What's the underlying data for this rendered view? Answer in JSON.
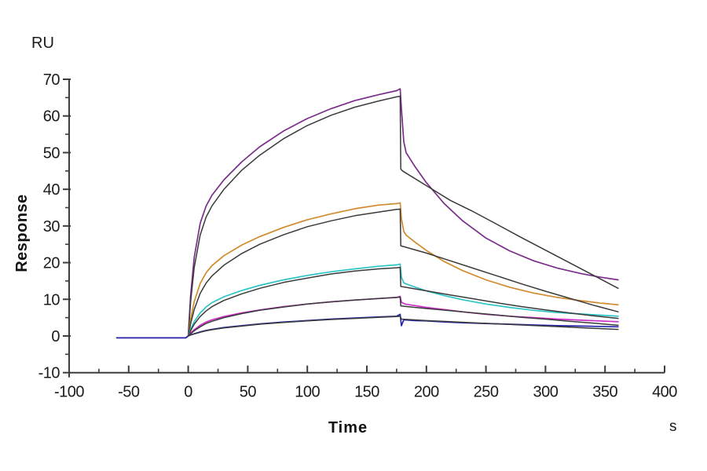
{
  "chart_data": {
    "type": "line",
    "title": "",
    "x_label": "Time",
    "x_unit": "s",
    "y_label": "Response",
    "y_unit": "RU",
    "x_range": [
      -100,
      400
    ],
    "y_range": [
      -10,
      70
    ],
    "x_ticks": [
      -100,
      -50,
      0,
      50,
      100,
      150,
      200,
      250,
      300,
      350,
      400
    ],
    "x_minor_ticks": [
      -75,
      -25,
      25,
      75,
      125,
      175,
      225,
      275,
      325,
      375
    ],
    "y_ticks": [
      -10,
      0,
      10,
      20,
      30,
      40,
      50,
      60,
      70
    ],
    "y_minor_ticks": [
      -5,
      5,
      15,
      25,
      35,
      45,
      55,
      65
    ],
    "grid": false,
    "legend": "none",
    "axis_color": "#3c3c3c",
    "baseline_start_s": -60,
    "association_start_s": 0,
    "dissociation_start_s": 178,
    "trace_end_s": 361,
    "series": [
      {
        "name": "curve1-data",
        "role": "data",
        "color": "#7b2d8b",
        "stroke_width": 1.7,
        "peak_ru": 67.4,
        "end_ru": 15.3,
        "points": [
          [
            -60,
            -0.5
          ],
          [
            -30,
            -0.5
          ],
          [
            -2,
            -0.5
          ],
          [
            0,
            0
          ],
          [
            2,
            10.9
          ],
          [
            5,
            21.4
          ],
          [
            10,
            30.7
          ],
          [
            15,
            35.4
          ],
          [
            20,
            38.4
          ],
          [
            30,
            42.6
          ],
          [
            45,
            47.5
          ],
          [
            60,
            51.6
          ],
          [
            80,
            55.9
          ],
          [
            100,
            59.3
          ],
          [
            120,
            62.0
          ],
          [
            140,
            64.2
          ],
          [
            160,
            65.8
          ],
          [
            175,
            66.9
          ],
          [
            178,
            67.4
          ],
          [
            179,
            62
          ],
          [
            181,
            53
          ],
          [
            183,
            50
          ],
          [
            190,
            46.4
          ],
          [
            200,
            41.8
          ],
          [
            215,
            36.1
          ],
          [
            230,
            31.5
          ],
          [
            250,
            26.7
          ],
          [
            270,
            23.2
          ],
          [
            290,
            20.5
          ],
          [
            310,
            18.5
          ],
          [
            330,
            17.0
          ],
          [
            345,
            16.1
          ],
          [
            361,
            15.3
          ]
        ]
      },
      {
        "name": "curve1-fit",
        "role": "fit",
        "color": "#3a3a3a",
        "stroke_width": 1.5,
        "peak_ru": 65.4,
        "end_ru": 13.0,
        "points": [
          [
            0,
            0
          ],
          [
            2,
            9.2
          ],
          [
            5,
            18.6
          ],
          [
            10,
            27.5
          ],
          [
            15,
            32.4
          ],
          [
            20,
            35.5
          ],
          [
            30,
            40.0
          ],
          [
            45,
            45.2
          ],
          [
            60,
            49.3
          ],
          [
            80,
            53.8
          ],
          [
            100,
            57.4
          ],
          [
            120,
            60.2
          ],
          [
            140,
            62.4
          ],
          [
            160,
            64.1
          ],
          [
            175,
            65.2
          ],
          [
            178,
            65.4
          ],
          [
            178.5,
            45.5
          ],
          [
            180,
            45
          ],
          [
            200,
            41
          ],
          [
            220,
            37
          ],
          [
            240,
            33.8
          ],
          [
            260,
            30.3
          ],
          [
            280,
            26.8
          ],
          [
            300,
            23.4
          ],
          [
            320,
            20
          ],
          [
            340,
            16.6
          ],
          [
            361,
            13
          ]
        ]
      },
      {
        "name": "curve2-data",
        "role": "data",
        "color": "#d28a2e",
        "stroke_width": 1.7,
        "peak_ru": 36.3,
        "end_ru": 8.5,
        "points": [
          [
            -60,
            -0.5
          ],
          [
            -2,
            -0.5
          ],
          [
            0,
            0
          ],
          [
            2,
            4.4
          ],
          [
            5,
            9.3
          ],
          [
            10,
            14.3
          ],
          [
            15,
            17.2
          ],
          [
            20,
            19.2
          ],
          [
            30,
            21.9
          ],
          [
            45,
            24.8
          ],
          [
            60,
            27.1
          ],
          [
            80,
            29.6
          ],
          [
            100,
            31.7
          ],
          [
            120,
            33.3
          ],
          [
            140,
            34.7
          ],
          [
            160,
            35.7
          ],
          [
            175,
            36.1
          ],
          [
            178,
            36.3
          ],
          [
            179,
            32
          ],
          [
            181,
            28.5
          ],
          [
            183,
            27.5
          ],
          [
            190,
            25.7
          ],
          [
            200,
            23.3
          ],
          [
            215,
            20.3
          ],
          [
            230,
            17.9
          ],
          [
            250,
            15.3
          ],
          [
            270,
            13.3
          ],
          [
            290,
            11.7
          ],
          [
            310,
            10.5
          ],
          [
            330,
            9.6
          ],
          [
            345,
            9.0
          ],
          [
            361,
            8.5
          ]
        ]
      },
      {
        "name": "curve2-fit",
        "role": "fit",
        "color": "#3a3a3a",
        "stroke_width": 1.5,
        "peak_ru": 34.6,
        "end_ru": 6.6,
        "points": [
          [
            0,
            0
          ],
          [
            2,
            3.3
          ],
          [
            5,
            7.2
          ],
          [
            10,
            11.6
          ],
          [
            15,
            14.4
          ],
          [
            20,
            16.4
          ],
          [
            30,
            19.3
          ],
          [
            45,
            22.5
          ],
          [
            60,
            25.0
          ],
          [
            80,
            27.6
          ],
          [
            100,
            29.8
          ],
          [
            120,
            31.4
          ],
          [
            140,
            32.8
          ],
          [
            160,
            33.8
          ],
          [
            175,
            34.5
          ],
          [
            178,
            34.6
          ],
          [
            178.5,
            24.6
          ],
          [
            200,
            22.6
          ],
          [
            220,
            20.5
          ],
          [
            240,
            18.4
          ],
          [
            260,
            16.3
          ],
          [
            280,
            14.2
          ],
          [
            300,
            12.2
          ],
          [
            320,
            10.3
          ],
          [
            340,
            8.4
          ],
          [
            361,
            6.6
          ]
        ]
      },
      {
        "name": "curve3-data",
        "role": "data",
        "color": "#2ec4c6",
        "stroke_width": 1.7,
        "peak_ru": 19.6,
        "end_ru": 5.4,
        "points": [
          [
            -60,
            -0.5
          ],
          [
            -2,
            -0.5
          ],
          [
            0,
            0
          ],
          [
            2,
            1.8
          ],
          [
            5,
            3.9
          ],
          [
            10,
            6.3
          ],
          [
            15,
            7.9
          ],
          [
            20,
            9.1
          ],
          [
            30,
            10.7
          ],
          [
            45,
            12.4
          ],
          [
            60,
            13.8
          ],
          [
            80,
            15.3
          ],
          [
            100,
            16.5
          ],
          [
            120,
            17.5
          ],
          [
            140,
            18.3
          ],
          [
            160,
            19.0
          ],
          [
            175,
            19.4
          ],
          [
            178,
            19.6
          ],
          [
            179,
            16
          ],
          [
            181,
            14.5
          ],
          [
            183,
            14.2
          ],
          [
            190,
            13.4
          ],
          [
            200,
            12.3
          ],
          [
            215,
            11.0
          ],
          [
            230,
            9.9
          ],
          [
            250,
            8.7
          ],
          [
            270,
            7.8
          ],
          [
            290,
            7.0
          ],
          [
            310,
            6.4
          ],
          [
            330,
            6.0
          ],
          [
            345,
            5.7
          ],
          [
            361,
            5.4
          ]
        ]
      },
      {
        "name": "curve3-fit",
        "role": "fit",
        "color": "#3a3a3a",
        "stroke_width": 1.5,
        "peak_ru": 18.7,
        "end_ru": 4.8,
        "points": [
          [
            0,
            0
          ],
          [
            2,
            1.4
          ],
          [
            5,
            3.2
          ],
          [
            10,
            5.3
          ],
          [
            15,
            6.8
          ],
          [
            20,
            8.0
          ],
          [
            30,
            9.7
          ],
          [
            45,
            11.5
          ],
          [
            60,
            13.0
          ],
          [
            80,
            14.6
          ],
          [
            100,
            15.8
          ],
          [
            120,
            16.9
          ],
          [
            140,
            17.7
          ],
          [
            160,
            18.3
          ],
          [
            175,
            18.6
          ],
          [
            178,
            18.7
          ],
          [
            178.5,
            13.5
          ],
          [
            200,
            12.3
          ],
          [
            220,
            11.2
          ],
          [
            240,
            10.1
          ],
          [
            260,
            9.0
          ],
          [
            280,
            8.0
          ],
          [
            300,
            7.1
          ],
          [
            320,
            6.3
          ],
          [
            340,
            5.5
          ],
          [
            361,
            4.8
          ]
        ]
      },
      {
        "name": "curve4-data",
        "role": "data",
        "color": "#cb2ecb",
        "stroke_width": 1.7,
        "peak_ru": 10.8,
        "end_ru": 3.9,
        "points": [
          [
            -60,
            -0.5
          ],
          [
            -2,
            -0.5
          ],
          [
            0,
            0
          ],
          [
            2,
            0.8
          ],
          [
            5,
            1.7
          ],
          [
            10,
            2.9
          ],
          [
            15,
            3.8
          ],
          [
            20,
            4.4
          ],
          [
            30,
            5.3
          ],
          [
            45,
            6.3
          ],
          [
            60,
            7.1
          ],
          [
            80,
            8.0
          ],
          [
            100,
            8.7
          ],
          [
            120,
            9.3
          ],
          [
            140,
            9.8
          ],
          [
            160,
            10.2
          ],
          [
            175,
            10.5
          ],
          [
            178,
            10.8
          ],
          [
            179,
            9.2
          ],
          [
            182,
            8.7
          ],
          [
            190,
            8.3
          ],
          [
            200,
            7.8
          ],
          [
            215,
            7.2
          ],
          [
            230,
            6.6
          ],
          [
            250,
            5.9
          ],
          [
            270,
            5.4
          ],
          [
            290,
            5.0
          ],
          [
            310,
            4.6
          ],
          [
            330,
            4.3
          ],
          [
            345,
            4.1
          ],
          [
            361,
            3.9
          ]
        ]
      },
      {
        "name": "curve4-fit",
        "role": "fit",
        "color": "#3a3a3a",
        "stroke_width": 1.5,
        "peak_ru": 10.6,
        "end_ru": 2.9,
        "points": [
          [
            0,
            0
          ],
          [
            2,
            0.6
          ],
          [
            5,
            1.4
          ],
          [
            10,
            2.5
          ],
          [
            15,
            3.4
          ],
          [
            20,
            4.0
          ],
          [
            30,
            5.0
          ],
          [
            45,
            6.1
          ],
          [
            60,
            7.0
          ],
          [
            80,
            7.9
          ],
          [
            100,
            8.7
          ],
          [
            120,
            9.3
          ],
          [
            140,
            9.8
          ],
          [
            160,
            10.2
          ],
          [
            175,
            10.5
          ],
          [
            178,
            10.6
          ],
          [
            178.5,
            8.2
          ],
          [
            200,
            7.5
          ],
          [
            220,
            6.9
          ],
          [
            240,
            6.3
          ],
          [
            260,
            5.7
          ],
          [
            280,
            5.1
          ],
          [
            300,
            4.6
          ],
          [
            320,
            4.0
          ],
          [
            340,
            3.5
          ],
          [
            361,
            2.9
          ]
        ]
      },
      {
        "name": "curve5-data",
        "role": "data",
        "color": "#2424ae",
        "stroke_width": 1.7,
        "peak_ru": 5.9,
        "end_ru": 2.5,
        "points": [
          [
            -60,
            -0.5
          ],
          [
            -2,
            -0.5
          ],
          [
            0,
            0
          ],
          [
            2,
            0.3
          ],
          [
            5,
            0.6
          ],
          [
            10,
            1.1
          ],
          [
            15,
            1.5
          ],
          [
            20,
            1.8
          ],
          [
            30,
            2.3
          ],
          [
            45,
            2.8
          ],
          [
            60,
            3.3
          ],
          [
            80,
            3.8
          ],
          [
            100,
            4.2
          ],
          [
            120,
            4.6
          ],
          [
            140,
            4.9
          ],
          [
            160,
            5.2
          ],
          [
            175,
            5.4
          ],
          [
            178,
            5.9
          ],
          [
            179,
            2.8
          ],
          [
            181,
            4.4
          ],
          [
            190,
            4.2
          ],
          [
            200,
            4.1
          ],
          [
            215,
            3.8
          ],
          [
            230,
            3.6
          ],
          [
            250,
            3.4
          ],
          [
            270,
            3.2
          ],
          [
            290,
            3.0
          ],
          [
            310,
            2.8
          ],
          [
            330,
            2.7
          ],
          [
            345,
            2.6
          ],
          [
            361,
            2.5
          ]
        ]
      },
      {
        "name": "curve5-fit",
        "role": "fit",
        "color": "#3a3a3a",
        "stroke_width": 1.5,
        "peak_ru": 5.4,
        "end_ru": 1.8,
        "points": [
          [
            0,
            0
          ],
          [
            2,
            0.25
          ],
          [
            5,
            0.55
          ],
          [
            10,
            1.0
          ],
          [
            15,
            1.4
          ],
          [
            20,
            1.7
          ],
          [
            30,
            2.2
          ],
          [
            45,
            2.7
          ],
          [
            60,
            3.2
          ],
          [
            80,
            3.7
          ],
          [
            100,
            4.1
          ],
          [
            120,
            4.5
          ],
          [
            140,
            4.8
          ],
          [
            160,
            5.1
          ],
          [
            175,
            5.3
          ],
          [
            178,
            5.4
          ],
          [
            179,
            4.6
          ],
          [
            200,
            4.2
          ],
          [
            220,
            3.9
          ],
          [
            240,
            3.6
          ],
          [
            260,
            3.3
          ],
          [
            280,
            3.0
          ],
          [
            300,
            2.7
          ],
          [
            320,
            2.4
          ],
          [
            340,
            2.1
          ],
          [
            361,
            1.8
          ]
        ]
      }
    ]
  }
}
